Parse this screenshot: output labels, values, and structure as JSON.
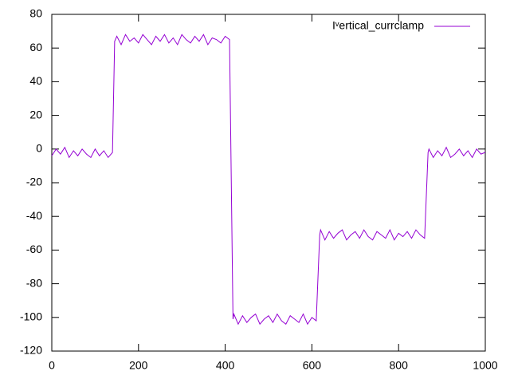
{
  "chart_data": {
    "type": "line",
    "x": [
      0,
      10,
      20,
      30,
      40,
      50,
      60,
      70,
      80,
      90,
      100,
      110,
      120,
      130,
      140,
      145,
      150,
      160,
      170,
      180,
      190,
      200,
      210,
      220,
      230,
      240,
      250,
      260,
      270,
      280,
      290,
      300,
      310,
      320,
      330,
      340,
      350,
      360,
      370,
      380,
      390,
      400,
      410,
      418,
      420,
      430,
      440,
      450,
      460,
      470,
      480,
      490,
      500,
      510,
      520,
      530,
      540,
      550,
      560,
      570,
      580,
      590,
      600,
      610,
      618,
      620,
      630,
      640,
      650,
      660,
      670,
      680,
      690,
      700,
      710,
      720,
      730,
      740,
      750,
      760,
      770,
      780,
      790,
      800,
      810,
      820,
      830,
      840,
      850,
      860,
      868,
      870,
      880,
      890,
      900,
      910,
      920,
      930,
      940,
      950,
      960,
      970,
      980,
      990,
      1000
    ],
    "series": [
      {
        "name": "Iᵛertical_currclamp",
        "color": "#9400d3",
        "values": [
          -4,
          0,
          -3,
          1,
          -5,
          -1,
          -4,
          0,
          -3,
          -5,
          0,
          -4,
          -1,
          -5,
          -2,
          64,
          67,
          62,
          68,
          64,
          66,
          63,
          68,
          65,
          62,
          67,
          64,
          68,
          63,
          66,
          62,
          68,
          65,
          63,
          67,
          64,
          68,
          62,
          66,
          65,
          63,
          67,
          65,
          -101,
          -98,
          -104,
          -99,
          -103,
          -100,
          -98,
          -104,
          -101,
          -99,
          -103,
          -98,
          -102,
          -104,
          -99,
          -101,
          -103,
          -98,
          -104,
          -100,
          -102,
          -51,
          -48,
          -54,
          -49,
          -53,
          -50,
          -48,
          -54,
          -51,
          -49,
          -53,
          -48,
          -52,
          -54,
          -49,
          -51,
          -53,
          -48,
          -54,
          -50,
          -52,
          -49,
          -53,
          -48,
          -51,
          -53,
          -2,
          0,
          -5,
          -1,
          -4,
          1,
          -5,
          -3,
          0,
          -4,
          -1,
          -5,
          0,
          -3,
          -2
        ]
      }
    ],
    "xlim": [
      0,
      1000
    ],
    "xticks": [
      0,
      200,
      400,
      600,
      800,
      1000
    ],
    "ylim": [
      -120,
      80
    ],
    "yticks": [
      -120,
      -100,
      -80,
      -60,
      -40,
      -20,
      0,
      20,
      40,
      60,
      80
    ],
    "legend": "top-right"
  }
}
